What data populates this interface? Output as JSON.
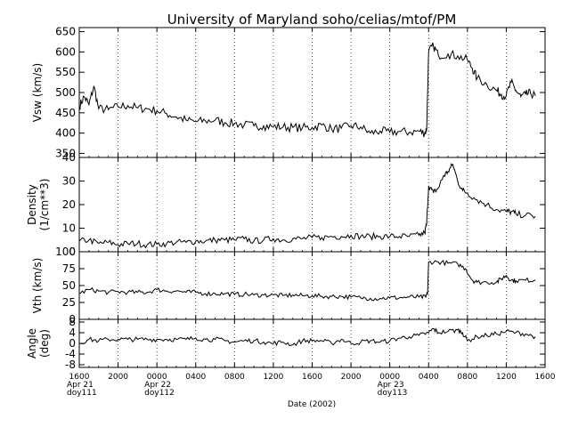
{
  "title": "University of Maryland  soho/celias/mtof/PM",
  "xlabel": "Date (2002)",
  "x_ticks": [
    {
      "hour": 0,
      "lines": [
        "1600",
        "Apr 21",
        "doy111"
      ]
    },
    {
      "hour": 4,
      "lines": [
        "2000"
      ]
    },
    {
      "hour": 8,
      "lines": [
        "0000",
        "Apr 22",
        "doy112"
      ]
    },
    {
      "hour": 12,
      "lines": [
        "0400"
      ]
    },
    {
      "hour": 16,
      "lines": [
        "0800"
      ]
    },
    {
      "hour": 20,
      "lines": [
        "1200"
      ]
    },
    {
      "hour": 24,
      "lines": [
        "1600"
      ]
    },
    {
      "hour": 28,
      "lines": [
        "2000"
      ]
    },
    {
      "hour": 32,
      "lines": [
        "0000",
        "Apr 23",
        "doy113"
      ]
    },
    {
      "hour": 36,
      "lines": [
        "0400"
      ]
    },
    {
      "hour": 40,
      "lines": [
        "0800"
      ]
    },
    {
      "hour": 44,
      "lines": [
        "1200"
      ]
    },
    {
      "hour": 48,
      "lines": [
        "1600"
      ]
    }
  ],
  "chart_data": [
    {
      "type": "line",
      "ylabel": [
        "Vsw (km/s)"
      ],
      "ylim": [
        340,
        660
      ],
      "yticks": [
        350,
        400,
        450,
        500,
        550,
        600,
        650
      ],
      "xlim": [
        0,
        48
      ],
      "grid": "dotted vertical",
      "series": [
        {
          "x": [
            0,
            0.5,
            1,
            1.5,
            2,
            3,
            4,
            5,
            6,
            7,
            8,
            9,
            10,
            11,
            12,
            13,
            14,
            15,
            16,
            17,
            18,
            19,
            20,
            21,
            22,
            23,
            24,
            25,
            26,
            27,
            28,
            29,
            30,
            31,
            32,
            33,
            34,
            35,
            35.6,
            35.8,
            36,
            36.5,
            37,
            38,
            39,
            40,
            40.5,
            41,
            42,
            43,
            43.5,
            44,
            44.5,
            45,
            45.5,
            46,
            46.5,
            47
          ],
          "values": [
            465,
            490,
            470,
            515,
            460,
            458,
            465,
            468,
            462,
            460,
            455,
            448,
            440,
            432,
            428,
            430,
            432,
            426,
            424,
            420,
            418,
            418,
            416,
            415,
            414,
            413,
            414,
            420,
            410,
            412,
            418,
            415,
            400,
            405,
            402,
            404,
            402,
            405,
            400,
            410,
            600,
            615,
            592,
            595,
            590,
            580,
            560,
            535,
            520,
            505,
            495,
            492,
            525,
            505,
            490,
            495,
            498,
            492
          ]
        }
      ]
    },
    {
      "type": "line",
      "ylabel": [
        "Density",
        "(1/cm**3)"
      ],
      "ylim": [
        0,
        40
      ],
      "yticks": [
        0,
        10,
        20,
        30,
        40
      ],
      "xlim": [
        0,
        48
      ],
      "grid": "dotted vertical",
      "series": [
        {
          "x": [
            0,
            1,
            2,
            3,
            4,
            5,
            6,
            7,
            8,
            9,
            10,
            11,
            12,
            13,
            14,
            15,
            16,
            17,
            18,
            19,
            20,
            21,
            22,
            23,
            24,
            25,
            26,
            27,
            28,
            29,
            30,
            31,
            32,
            33,
            34,
            35,
            35.6,
            35.8,
            36,
            36.5,
            37,
            37.5,
            38,
            38.5,
            39,
            39.5,
            40,
            41,
            42,
            43,
            44,
            44.5,
            45,
            46,
            47
          ],
          "values": [
            4.5,
            5,
            3.5,
            4,
            3,
            3.5,
            3.5,
            3,
            3.2,
            3.5,
            4,
            4,
            4.5,
            4.5,
            5,
            5,
            5,
            5.5,
            4.5,
            5,
            5.5,
            5,
            5.5,
            5.5,
            6,
            6,
            6.5,
            6.5,
            7,
            6.5,
            6.5,
            6.5,
            6.5,
            6.5,
            6.5,
            7,
            8,
            12,
            28,
            25,
            27,
            32,
            34,
            37,
            30,
            26,
            25,
            22,
            20,
            18,
            17,
            17,
            16,
            15.5,
            15
          ]
        }
      ]
    },
    {
      "type": "line",
      "ylabel": [
        "Vth (km/s)"
      ],
      "ylim": [
        0,
        100
      ],
      "yticks": [
        0,
        25,
        50,
        75,
        100
      ],
      "minor_yticks": [
        0,
        25,
        50,
        75,
        100
      ],
      "xlim": [
        0,
        48
      ],
      "grid": "dotted vertical",
      "series": [
        {
          "x": [
            0,
            1,
            2,
            3,
            4,
            5,
            6,
            7,
            8,
            9,
            10,
            11,
            12,
            13,
            14,
            15,
            16,
            17,
            18,
            19,
            20,
            21,
            22,
            23,
            24,
            25,
            26,
            27,
            28,
            29,
            30,
            31,
            32,
            33,
            34,
            35,
            35.7,
            35.9,
            36,
            37,
            38,
            39,
            39.8,
            40.5,
            41,
            42,
            43,
            43.5,
            44,
            44.5,
            45,
            46,
            47
          ],
          "values": [
            38,
            44,
            42,
            40,
            41,
            40,
            40,
            40,
            44,
            42,
            42,
            40,
            40,
            38,
            38,
            38,
            37,
            37,
            36,
            36,
            36,
            35,
            36,
            35,
            35,
            34,
            34,
            34,
            33,
            32,
            31,
            31,
            32,
            32,
            33,
            33,
            33,
            40,
            85,
            85,
            83,
            82,
            75,
            58,
            55,
            55,
            55,
            60,
            65,
            58,
            57,
            58,
            58
          ]
        }
      ]
    },
    {
      "type": "line",
      "ylabel": [
        "Angle",
        "(deg)"
      ],
      "ylim": [
        -9,
        9
      ],
      "yticks": [
        -8,
        -4,
        0,
        4,
        8
      ],
      "xlim": [
        0,
        48
      ],
      "grid": "dotted vertical",
      "series": [
        {
          "x": [
            0,
            1,
            2,
            3,
            4,
            5,
            6,
            7,
            8,
            9,
            10,
            11,
            12,
            13,
            14,
            15,
            16,
            17,
            18,
            19,
            20,
            21,
            22,
            23,
            24,
            25,
            26,
            27,
            28,
            29,
            30,
            31,
            32,
            33,
            34,
            35,
            36,
            36.5,
            37,
            38,
            39,
            39.5,
            40,
            41,
            42,
            43,
            44,
            45,
            46,
            47
          ],
          "values": [
            0,
            1.5,
            1,
            1.5,
            1.5,
            1.5,
            1.5,
            1.5,
            1.5,
            1.5,
            1.5,
            1.5,
            2,
            1.5,
            1.5,
            1,
            0.5,
            1,
            1,
            0.5,
            0,
            0.5,
            -0.5,
            1,
            1,
            1,
            0,
            1.5,
            0,
            0.5,
            1,
            0.5,
            1,
            2,
            2.5,
            3,
            4,
            5.5,
            4,
            4.5,
            5,
            4,
            1,
            2.5,
            3,
            3.5,
            4.5,
            4,
            3.5,
            2.5
          ]
        }
      ]
    }
  ]
}
